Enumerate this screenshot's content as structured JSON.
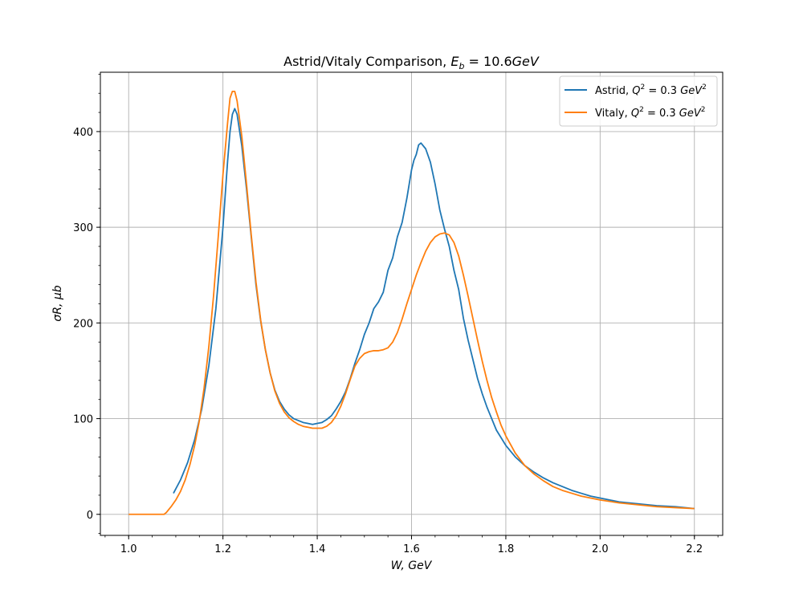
{
  "chart_data": {
    "type": "line",
    "title": "Astrid/Vitaly Comparison, Eb = 10.6GeV",
    "title_parts": {
      "main": "Astrid/Vitaly Comparison, ",
      "E": "E",
      "sub": "b",
      "rest": " = 10.6",
      "unit": "GeV"
    },
    "xlabel": "W, GeV",
    "ylabel": "σR, μb",
    "xlim": [
      0.94,
      2.26
    ],
    "ylim": [
      -22,
      462
    ],
    "xticks": [
      1.0,
      1.2,
      1.4,
      1.6,
      1.8,
      2.0,
      2.2
    ],
    "xtick_labels": [
      "1.0",
      "1.2",
      "1.4",
      "1.6",
      "1.8",
      "2.0",
      "2.2"
    ],
    "yticks": [
      0,
      100,
      200,
      300,
      400
    ],
    "ytick_labels": [
      "0",
      "100",
      "200",
      "300",
      "400"
    ],
    "grid": true,
    "legend_position": "top-right",
    "series": [
      {
        "name": "Astrid, Q2 = 0.3 GeV2",
        "legend": {
          "prefix": "Astrid, ",
          "Q": "Q",
          "sup": "2",
          "mid": " = 0.3 ",
          "unit": "GeV",
          "unit_sup": "2"
        },
        "color": "#1f77b4",
        "points": [
          [
            1.095,
            22
          ],
          [
            1.11,
            36
          ],
          [
            1.125,
            54
          ],
          [
            1.14,
            78
          ],
          [
            1.155,
            110
          ],
          [
            1.17,
            155
          ],
          [
            1.185,
            215
          ],
          [
            1.2,
            300
          ],
          [
            1.21,
            370
          ],
          [
            1.215,
            400
          ],
          [
            1.22,
            418
          ],
          [
            1.225,
            424
          ],
          [
            1.23,
            418
          ],
          [
            1.24,
            385
          ],
          [
            1.25,
            340
          ],
          [
            1.26,
            290
          ],
          [
            1.27,
            240
          ],
          [
            1.28,
            202
          ],
          [
            1.29,
            172
          ],
          [
            1.3,
            148
          ],
          [
            1.31,
            130
          ],
          [
            1.32,
            118
          ],
          [
            1.33,
            110
          ],
          [
            1.34,
            104
          ],
          [
            1.35,
            100
          ],
          [
            1.36,
            98
          ],
          [
            1.37,
            96
          ],
          [
            1.38,
            95
          ],
          [
            1.39,
            94
          ],
          [
            1.4,
            95
          ],
          [
            1.41,
            96
          ],
          [
            1.42,
            99
          ],
          [
            1.43,
            103
          ],
          [
            1.44,
            110
          ],
          [
            1.45,
            118
          ],
          [
            1.46,
            128
          ],
          [
            1.47,
            142
          ],
          [
            1.48,
            158
          ],
          [
            1.49,
            172
          ],
          [
            1.5,
            188
          ],
          [
            1.51,
            200
          ],
          [
            1.52,
            215
          ],
          [
            1.53,
            222
          ],
          [
            1.54,
            232
          ],
          [
            1.55,
            255
          ],
          [
            1.56,
            268
          ],
          [
            1.57,
            290
          ],
          [
            1.58,
            305
          ],
          [
            1.59,
            330
          ],
          [
            1.6,
            360
          ],
          [
            1.605,
            370
          ],
          [
            1.61,
            376
          ],
          [
            1.615,
            386
          ],
          [
            1.62,
            388
          ],
          [
            1.63,
            382
          ],
          [
            1.64,
            368
          ],
          [
            1.65,
            345
          ],
          [
            1.66,
            318
          ],
          [
            1.67,
            298
          ],
          [
            1.68,
            280
          ],
          [
            1.69,
            255
          ],
          [
            1.7,
            235
          ],
          [
            1.71,
            205
          ],
          [
            1.72,
            182
          ],
          [
            1.73,
            162
          ],
          [
            1.74,
            142
          ],
          [
            1.75,
            126
          ],
          [
            1.76,
            112
          ],
          [
            1.77,
            100
          ],
          [
            1.78,
            88
          ],
          [
            1.79,
            80
          ],
          [
            1.8,
            72
          ],
          [
            1.82,
            60
          ],
          [
            1.84,
            51
          ],
          [
            1.86,
            44
          ],
          [
            1.88,
            38
          ],
          [
            1.9,
            33
          ],
          [
            1.92,
            29
          ],
          [
            1.94,
            25
          ],
          [
            1.96,
            22
          ],
          [
            1.98,
            19
          ],
          [
            2.0,
            17
          ],
          [
            2.04,
            13
          ],
          [
            2.08,
            11
          ],
          [
            2.12,
            9
          ],
          [
            2.16,
            8
          ],
          [
            2.2,
            6
          ]
        ]
      },
      {
        "name": "Vitaly, Q2 = 0.3 GeV2",
        "legend": {
          "prefix": "Vitaly, ",
          "Q": "Q",
          "sup": "2",
          "mid": " = 0.3 ",
          "unit": "GeV",
          "unit_sup": "2"
        },
        "color": "#ff7f0e",
        "points": [
          [
            1.0,
            0
          ],
          [
            1.02,
            0
          ],
          [
            1.04,
            0
          ],
          [
            1.06,
            0
          ],
          [
            1.075,
            0
          ],
          [
            1.08,
            2
          ],
          [
            1.09,
            8
          ],
          [
            1.1,
            15
          ],
          [
            1.11,
            24
          ],
          [
            1.12,
            36
          ],
          [
            1.13,
            52
          ],
          [
            1.14,
            72
          ],
          [
            1.15,
            98
          ],
          [
            1.16,
            132
          ],
          [
            1.17,
            175
          ],
          [
            1.18,
            228
          ],
          [
            1.19,
            290
          ],
          [
            1.2,
            355
          ],
          [
            1.21,
            410
          ],
          [
            1.215,
            435
          ],
          [
            1.22,
            442
          ],
          [
            1.225,
            442
          ],
          [
            1.23,
            432
          ],
          [
            1.24,
            395
          ],
          [
            1.25,
            345
          ],
          [
            1.26,
            292
          ],
          [
            1.27,
            243
          ],
          [
            1.28,
            203
          ],
          [
            1.29,
            172
          ],
          [
            1.3,
            148
          ],
          [
            1.31,
            129
          ],
          [
            1.32,
            116
          ],
          [
            1.33,
            107
          ],
          [
            1.34,
            101
          ],
          [
            1.35,
            97
          ],
          [
            1.36,
            94
          ],
          [
            1.37,
            92
          ],
          [
            1.38,
            91
          ],
          [
            1.39,
            90
          ],
          [
            1.4,
            90
          ],
          [
            1.41,
            90
          ],
          [
            1.42,
            92
          ],
          [
            1.43,
            96
          ],
          [
            1.44,
            103
          ],
          [
            1.45,
            113
          ],
          [
            1.46,
            126
          ],
          [
            1.47,
            141
          ],
          [
            1.48,
            155
          ],
          [
            1.49,
            163
          ],
          [
            1.5,
            168
          ],
          [
            1.51,
            170
          ],
          [
            1.52,
            171
          ],
          [
            1.53,
            171
          ],
          [
            1.54,
            172
          ],
          [
            1.55,
            174
          ],
          [
            1.56,
            180
          ],
          [
            1.57,
            190
          ],
          [
            1.58,
            204
          ],
          [
            1.59,
            220
          ],
          [
            1.6,
            235
          ],
          [
            1.61,
            250
          ],
          [
            1.62,
            263
          ],
          [
            1.63,
            275
          ],
          [
            1.64,
            284
          ],
          [
            1.65,
            290
          ],
          [
            1.66,
            293
          ],
          [
            1.67,
            294
          ],
          [
            1.68,
            292
          ],
          [
            1.69,
            284
          ],
          [
            1.7,
            270
          ],
          [
            1.71,
            250
          ],
          [
            1.72,
            228
          ],
          [
            1.73,
            205
          ],
          [
            1.74,
            182
          ],
          [
            1.75,
            160
          ],
          [
            1.76,
            140
          ],
          [
            1.77,
            122
          ],
          [
            1.78,
            107
          ],
          [
            1.79,
            93
          ],
          [
            1.8,
            82
          ],
          [
            1.82,
            64
          ],
          [
            1.84,
            51
          ],
          [
            1.86,
            42
          ],
          [
            1.88,
            35
          ],
          [
            1.9,
            29
          ],
          [
            1.92,
            25
          ],
          [
            1.94,
            22
          ],
          [
            1.96,
            19
          ],
          [
            1.98,
            17
          ],
          [
            2.0,
            15
          ],
          [
            2.04,
            12
          ],
          [
            2.08,
            10
          ],
          [
            2.12,
            8
          ],
          [
            2.16,
            7
          ],
          [
            2.2,
            6
          ]
        ]
      }
    ]
  }
}
